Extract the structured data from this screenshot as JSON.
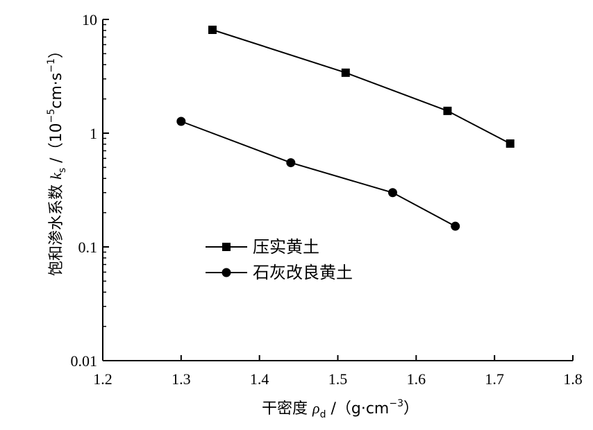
{
  "chart_data": {
    "type": "line",
    "xlabel": "干密度 ρd /（g·cm⁻³）",
    "xlabel_parts": {
      "main": "干密度 ",
      "symbol": "ρ",
      "sub": "d",
      "unit_open": " /（g·cm",
      "unit_exp": "−3",
      "unit_close": "）"
    },
    "ylabel": "饱和渗水系数 ks /（10⁻⁵cm·s⁻¹）",
    "ylabel_parts": {
      "main": "饱和渗水系数 ",
      "symbol": "k",
      "sub": "s",
      "unit_open": " /（10",
      "unit_exp1": "−5",
      "unit_mid": "cm·s",
      "unit_exp2": "−1",
      "unit_close": "）"
    },
    "xlim": [
      1.2,
      1.8
    ],
    "ylim": [
      0.01,
      10
    ],
    "yscale": "log",
    "x_ticks": [
      "1.2",
      "1.3",
      "1.4",
      "1.5",
      "1.6",
      "1.7",
      "1.8"
    ],
    "y_ticks": [
      "0.01",
      "0.1",
      "1",
      "10"
    ],
    "grid": false,
    "legend_position": "center-left",
    "series": [
      {
        "name": "压实黄土",
        "marker": "square",
        "color": "#000000",
        "x": [
          1.34,
          1.51,
          1.64,
          1.72
        ],
        "y": [
          8.1,
          3.4,
          1.57,
          0.81
        ]
      },
      {
        "name": "石灰改良黄土",
        "marker": "circle",
        "color": "#000000",
        "x": [
          1.3,
          1.44,
          1.57,
          1.65
        ],
        "y": [
          1.27,
          0.55,
          0.3,
          0.152
        ]
      }
    ]
  }
}
